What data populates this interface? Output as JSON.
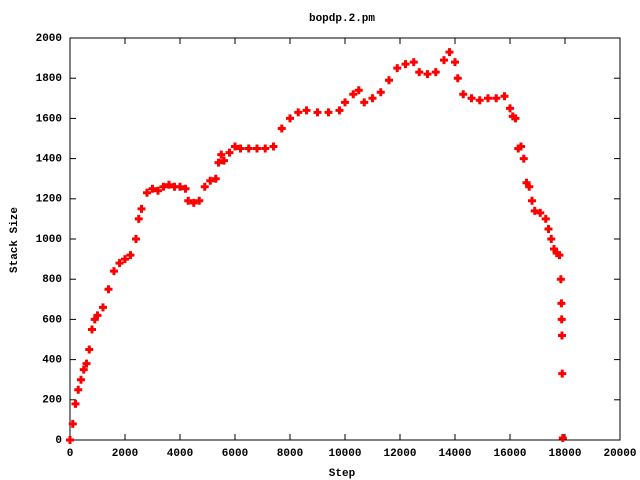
{
  "chart_data": {
    "type": "scatter",
    "title": "bopdp.2.pm",
    "x_label": "Step",
    "y_label": "Stack Size",
    "color": "#ff0000",
    "marker": "plus",
    "x": [
      0,
      100,
      200,
      300,
      400,
      500,
      600,
      700,
      800,
      900,
      1000,
      1200,
      1400,
      1600,
      1800,
      2000,
      2200,
      2400,
      2500,
      2600,
      2800,
      3000,
      3200,
      3400,
      3600,
      3800,
      4000,
      4200,
      4300,
      4500,
      4700,
      4900,
      5100,
      5300,
      5400,
      5500,
      5600,
      5800,
      6000,
      6200,
      6500,
      6800,
      7100,
      7400,
      7700,
      8000,
      8300,
      8600,
      9000,
      9400,
      9800,
      10000,
      10300,
      10500,
      10700,
      11000,
      11300,
      11600,
      11900,
      12200,
      12500,
      12700,
      13000,
      13300,
      13600,
      13800,
      14000,
      14100,
      14300,
      14600,
      14900,
      15200,
      15500,
      15800,
      16000,
      16100,
      16200,
      16300,
      16400,
      16500,
      16600,
      16700,
      16800,
      16900,
      17100,
      17300,
      17400,
      17500,
      17600,
      17700,
      17800,
      17850,
      17870,
      17880,
      17890,
      17900,
      17920
    ],
    "y": [
      0,
      80,
      180,
      250,
      300,
      350,
      380,
      450,
      550,
      600,
      620,
      660,
      750,
      840,
      880,
      900,
      920,
      1000,
      1100,
      1150,
      1230,
      1250,
      1240,
      1260,
      1270,
      1260,
      1260,
      1250,
      1190,
      1180,
      1190,
      1260,
      1290,
      1300,
      1380,
      1420,
      1390,
      1430,
      1460,
      1450,
      1450,
      1450,
      1450,
      1460,
      1550,
      1600,
      1630,
      1640,
      1630,
      1630,
      1640,
      1680,
      1720,
      1740,
      1680,
      1700,
      1730,
      1790,
      1850,
      1870,
      1880,
      1830,
      1820,
      1830,
      1890,
      1930,
      1880,
      1800,
      1720,
      1700,
      1690,
      1700,
      1700,
      1710,
      1650,
      1610,
      1600,
      1450,
      1460,
      1400,
      1280,
      1260,
      1190,
      1140,
      1130,
      1100,
      1050,
      1000,
      950,
      930,
      920,
      800,
      680,
      600,
      520,
      330,
      10
    ],
    "xlim": [
      0,
      20000
    ],
    "xticks": [
      0,
      2000,
      4000,
      6000,
      8000,
      10000,
      12000,
      14000,
      16000,
      18000,
      20000
    ],
    "ylim": [
      0,
      2000
    ],
    "yticks": [
      0,
      200,
      400,
      600,
      800,
      1000,
      1200,
      1400,
      1600,
      1800,
      2000
    ]
  }
}
